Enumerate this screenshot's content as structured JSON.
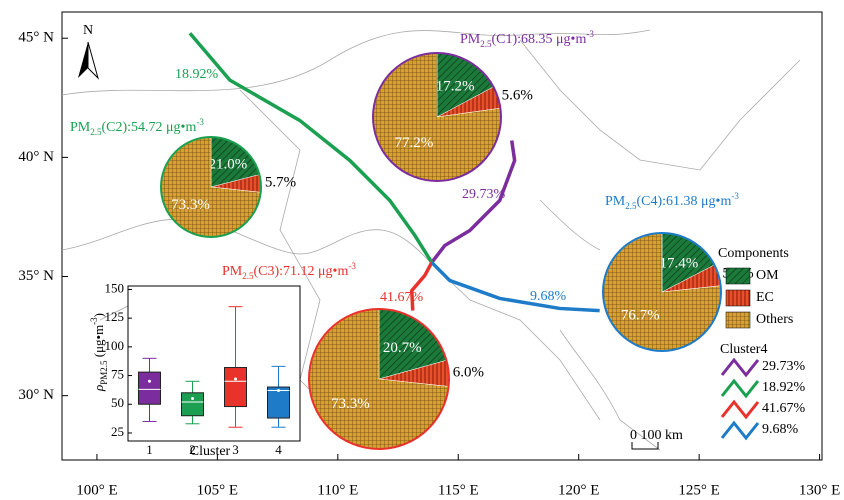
{
  "map": {
    "xlim": [
      98.55,
      130.1
    ],
    "ylim": [
      27.3,
      46.1
    ],
    "xticks": [
      {
        "value": 100,
        "label": "100° E"
      },
      {
        "value": 105,
        "label": "105° E"
      },
      {
        "value": 110,
        "label": "110° E"
      },
      {
        "value": 115,
        "label": "115° E"
      },
      {
        "value": 120,
        "label": "120° E"
      },
      {
        "value": 125,
        "label": "125° E"
      },
      {
        "value": 130,
        "label": "130° E"
      }
    ],
    "yticks": [
      {
        "value": 30,
        "label": "30° N"
      },
      {
        "value": 35,
        "label": "35° N"
      },
      {
        "value": 40,
        "label": "40° N"
      },
      {
        "value": 45,
        "label": "45° N"
      }
    ],
    "north": "N",
    "scale": "0 100 km"
  },
  "trajectories": [
    {
      "name": "C1",
      "color": "#7b2d9e",
      "share": "29.73%",
      "lon": [
        117.22,
        117.34,
        116.72,
        115.48,
        114.44,
        113.9
      ],
      "lat": [
        40.71,
        39.87,
        38.19,
        36.93,
        36.3,
        35.59
      ]
    },
    {
      "name": "C2",
      "color": "#1aa050",
      "share": "18.92%",
      "lon": [
        103.86,
        105.52,
        108.42,
        110.5,
        112.16,
        113.2,
        113.9
      ],
      "lat": [
        45.21,
        43.24,
        41.55,
        39.87,
        38.19,
        36.72,
        35.59
      ]
    },
    {
      "name": "C3",
      "color": "#e8322b",
      "share": "41.67%",
      "lon": [
        113.9,
        113.61,
        113.07,
        113.11
      ],
      "lat": [
        35.59,
        35.04,
        34.41,
        33.57
      ]
    },
    {
      "name": "C4",
      "color": "#1e7bc8",
      "share": "9.68%",
      "lon": [
        113.9,
        114.65,
        116.72,
        119.21,
        120.87
      ],
      "lat": [
        35.59,
        34.83,
        34.08,
        33.66,
        33.57
      ]
    }
  ],
  "pies": [
    {
      "title": {
        "pm": "PM",
        "sub": "2.5",
        "text": "(C1):68.35  μg•m",
        "sup": "-3"
      },
      "values": [
        17.2,
        5.6,
        77.2
      ],
      "labels": [
        "17.2%",
        "5.6%",
        "77.2%"
      ]
    },
    {
      "title": {
        "pm": "PM",
        "sub": "2.5",
        "text": "(C2):54.72  μg•m",
        "sup": "-3"
      },
      "values": [
        21.0,
        5.7,
        73.3
      ],
      "labels": [
        "21.0%",
        "5.7%",
        "73.3%"
      ]
    },
    {
      "title": {
        "pm": "PM",
        "sub": "2.5",
        "text": "(C3):71.12  μg•m",
        "sup": "-3"
      },
      "values": [
        20.7,
        6.0,
        73.3
      ],
      "labels": [
        "20.7%",
        "6.0%",
        "73.3%"
      ]
    },
    {
      "title": {
        "pm": "PM",
        "sub": "2.5",
        "text": "(C4):61.38  μg•m",
        "sup": "-3"
      },
      "values": [
        17.4,
        5.9,
        76.7
      ],
      "labels": [
        "17.4%",
        "5.9%",
        "76.7%"
      ]
    }
  ],
  "legend": {
    "components_title": "Components",
    "components": [
      "OM",
      "EC",
      "Others"
    ],
    "clusters_title": "Cluster4"
  },
  "box_plot": {
    "ylim": [
      18,
      153
    ],
    "yticks": [
      25,
      50,
      75,
      100,
      125,
      150
    ],
    "categories": [
      "1",
      "2",
      "3",
      "4"
    ],
    "xlabel": "Cluster",
    "ylabel": {
      "rho": "ρ",
      "sub": "PM2.5",
      "text": " (μg•m",
      "sup": "-3",
      "end": ")"
    },
    "boxes": [
      {
        "low": 35,
        "q1": 50,
        "median": 63,
        "q3": 78,
        "high": 90,
        "mean": 70
      },
      {
        "low": 33,
        "q1": 40,
        "median": 52,
        "q3": 60,
        "high": 70,
        "mean": 55
      },
      {
        "low": 30,
        "q1": 48,
        "median": 70,
        "q3": 82,
        "high": 135,
        "mean": 72
      },
      {
        "low": 30,
        "q1": 38,
        "median": 62,
        "q3": 65,
        "high": 83,
        "mean": 62
      }
    ]
  }
}
